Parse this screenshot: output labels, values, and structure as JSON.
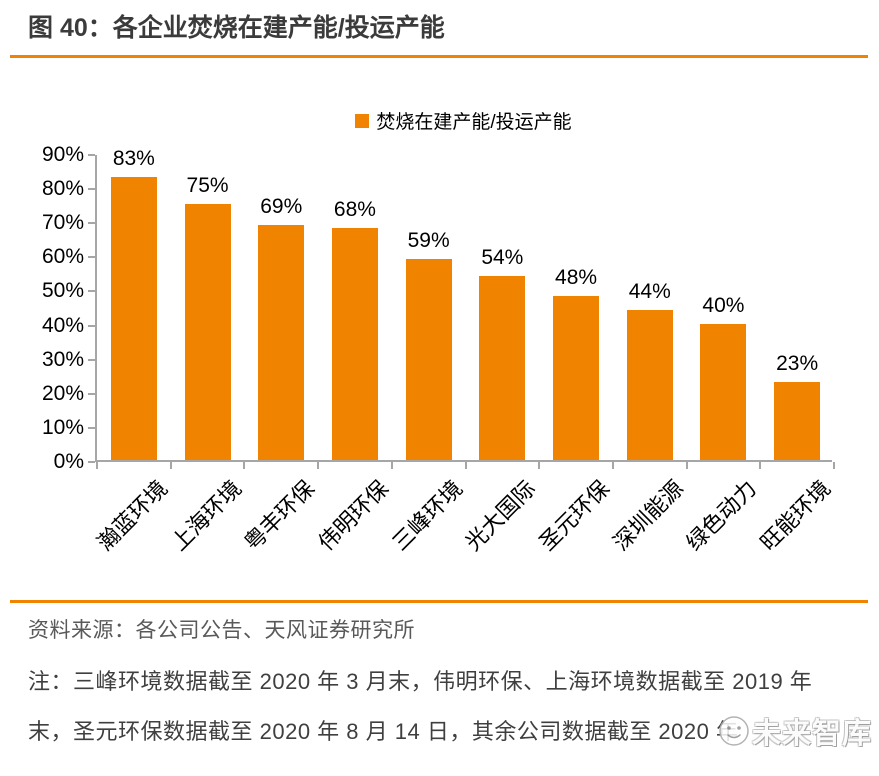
{
  "header": {
    "title": "图 40：各企业焚烧在建产能/投运产能"
  },
  "chart_data": {
    "type": "bar",
    "title": "图 40：各企业焚烧在建产能/投运产能",
    "legend": "焚烧在建产能/投运产能",
    "legend_position": "top-center",
    "categories": [
      "瀚蓝环境",
      "上海环境",
      "粤丰环保",
      "伟明环保",
      "三峰环境",
      "光大国际",
      "圣元环保",
      "深圳能源",
      "绿色动力",
      "旺能环境"
    ],
    "values": [
      83,
      75,
      69,
      68,
      59,
      54,
      48,
      44,
      40,
      23
    ],
    "unit": "%",
    "xlabel": "",
    "ylabel": "",
    "ylim": [
      0,
      90
    ],
    "ytick_step": 10,
    "grid": false,
    "bar_color": "#F08300",
    "axis_color": "#A6A6A6"
  },
  "footer": {
    "source": "资料来源：各公司公告、天风证券研究所",
    "note_line1": "注：三峰环境数据截至 2020 年 3 月末，伟明环保、上海环境数据截至 2019 年",
    "note_line2": "末，圣元环保数据截至 2020 年 8 月 14 日，其余公司数据截至 2020 年"
  },
  "watermark": {
    "text": "未来智库"
  },
  "colors": {
    "accent": "#F08300",
    "axis": "#A6A6A6",
    "title_text": "#3B3B3B",
    "source_text": "#595959",
    "note_text": "#3F3F3F",
    "label_text": "#000000"
  }
}
